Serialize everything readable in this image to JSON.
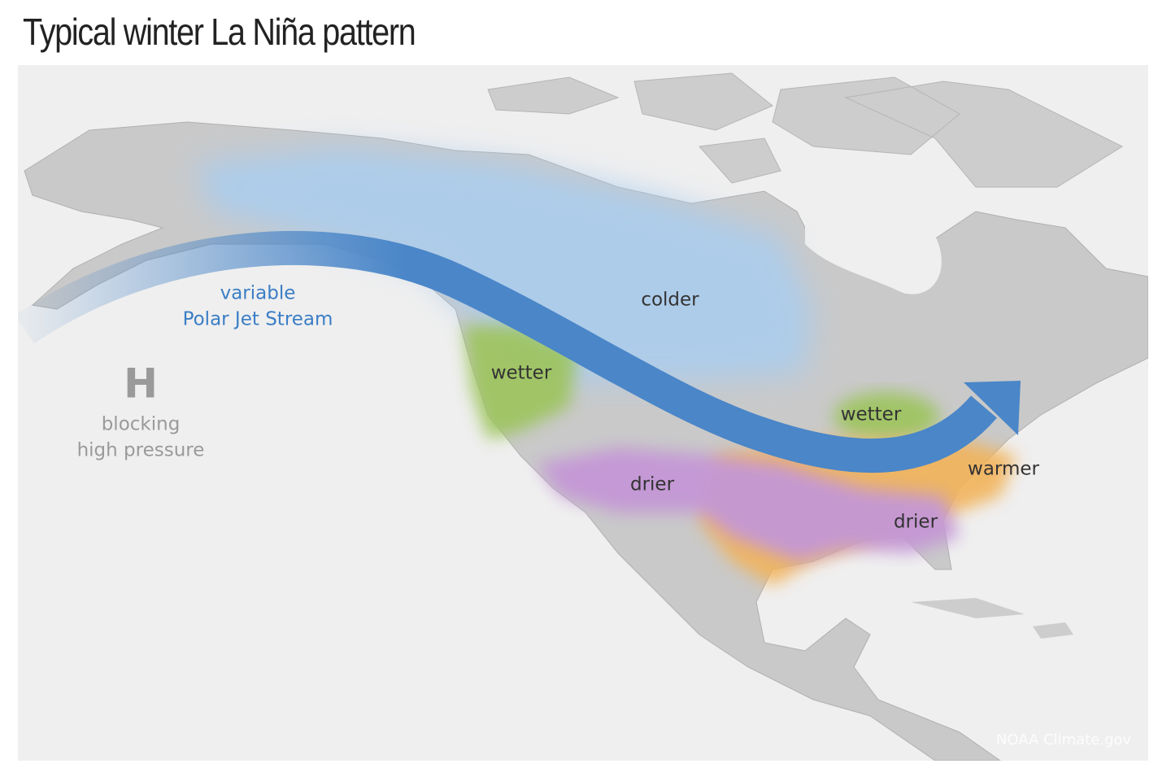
{
  "title": "Typical winter La Niña pattern",
  "map": {
    "jet_stream": {
      "line1": "variable",
      "line2": "Polar Jet Stream"
    },
    "regions": [
      {
        "label": "colder"
      },
      {
        "label": "wetter"
      },
      {
        "label": "wetter"
      },
      {
        "label": "drier"
      },
      {
        "label": "drier"
      },
      {
        "label": "warmer"
      }
    ],
    "high_pressure": {
      "symbol": "H",
      "line1": "blocking",
      "line2": "high pressure"
    },
    "credit": "NOAA Climate.gov"
  }
}
